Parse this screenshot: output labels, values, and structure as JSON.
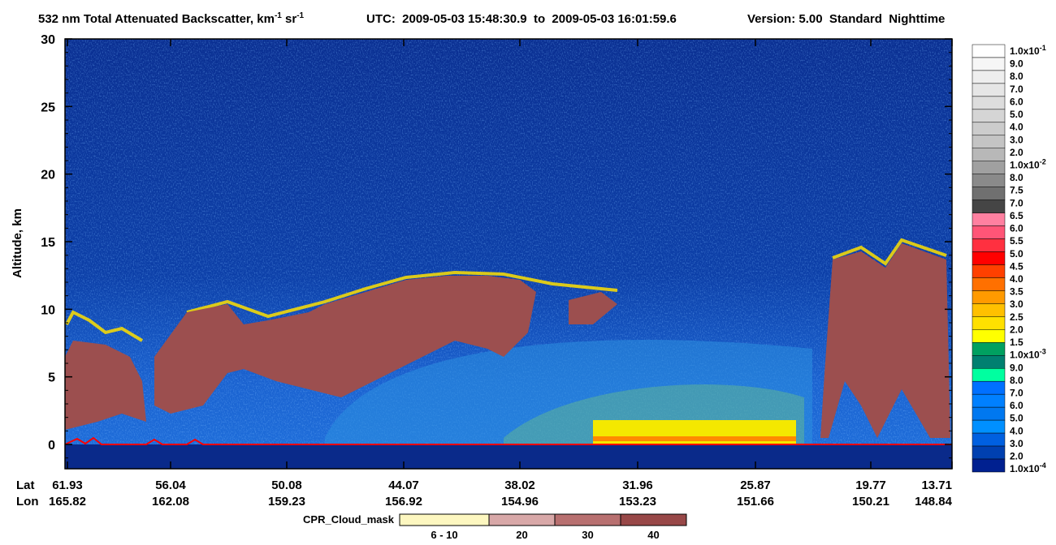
{
  "chart_data": {
    "type": "curtain",
    "title": {
      "text": "532 nm Total Attenuated Backscatter, km",
      "sup1": "-1",
      "text2": " sr",
      "sup2": "-1"
    },
    "utc": "UTC:  2009-05-03 15:48:30.9  to  2009-05-03 16:01:59.6",
    "version": "Version: 5.00  Standard  Nighttime",
    "ylabel": "Altitude, km",
    "ylim": [
      -1.8,
      30
    ],
    "yticks": [
      0,
      5,
      10,
      15,
      20,
      25,
      30
    ],
    "x_row_labels": [
      "Lat",
      "Lon"
    ],
    "lat": [
      61.93,
      56.04,
      50.08,
      44.07,
      38.02,
      31.96,
      25.87,
      19.77,
      13.71
    ],
    "lon": [
      165.82,
      162.08,
      159.23,
      156.92,
      154.96,
      153.23,
      151.66,
      150.21,
      148.84
    ],
    "colorbar": {
      "labels": [
        {
          "text": "1.0x10",
          "sup": "-1"
        },
        "9.0",
        "8.0",
        "7.0",
        "6.0",
        "5.0",
        "4.0",
        "3.0",
        "2.0",
        {
          "text": "1.0x10",
          "sup": "-2"
        },
        "8.0",
        "7.5",
        "7.0",
        "6.5",
        "6.0",
        "5.5",
        "5.0",
        "4.5",
        "4.0",
        "3.5",
        "3.0",
        "2.5",
        "2.0",
        "1.5",
        {
          "text": "1.0x10",
          "sup": "-3"
        },
        "9.0",
        "8.0",
        "7.0",
        "6.0",
        "5.0",
        "4.0",
        "3.0",
        "2.0",
        {
          "text": "1.0x10",
          "sup": "-4"
        }
      ],
      "colors": [
        "#ffffff",
        "#f6f6f6",
        "#eeeeee",
        "#e6e6e6",
        "#dddddd",
        "#d5d5d5",
        "#cccccc",
        "#c4c4c4",
        "#b8b8b8",
        "#a0a0a0",
        "#8a8a8a",
        "#707070",
        "#454545",
        "#ff80a0",
        "#ff5577",
        "#ff3040",
        "#ff0000",
        "#ff4000",
        "#ff7000",
        "#ff9a00",
        "#ffc000",
        "#ffe000",
        "#ffff00",
        "#00a060",
        "#008070",
        "#00ffa0",
        "#0070ff",
        "#0080ff",
        "#0078f0",
        "#0090ff",
        "#0060e0",
        "#0040b0",
        "#002090"
      ]
    },
    "cpr_legend": {
      "title": "CPR_Cloud_mask",
      "labels": [
        "6 - 10",
        "20",
        "30",
        "40"
      ],
      "colors": [
        "#fdf7c0",
        "#d8a8a8",
        "#b87070",
        "#984848"
      ]
    }
  }
}
